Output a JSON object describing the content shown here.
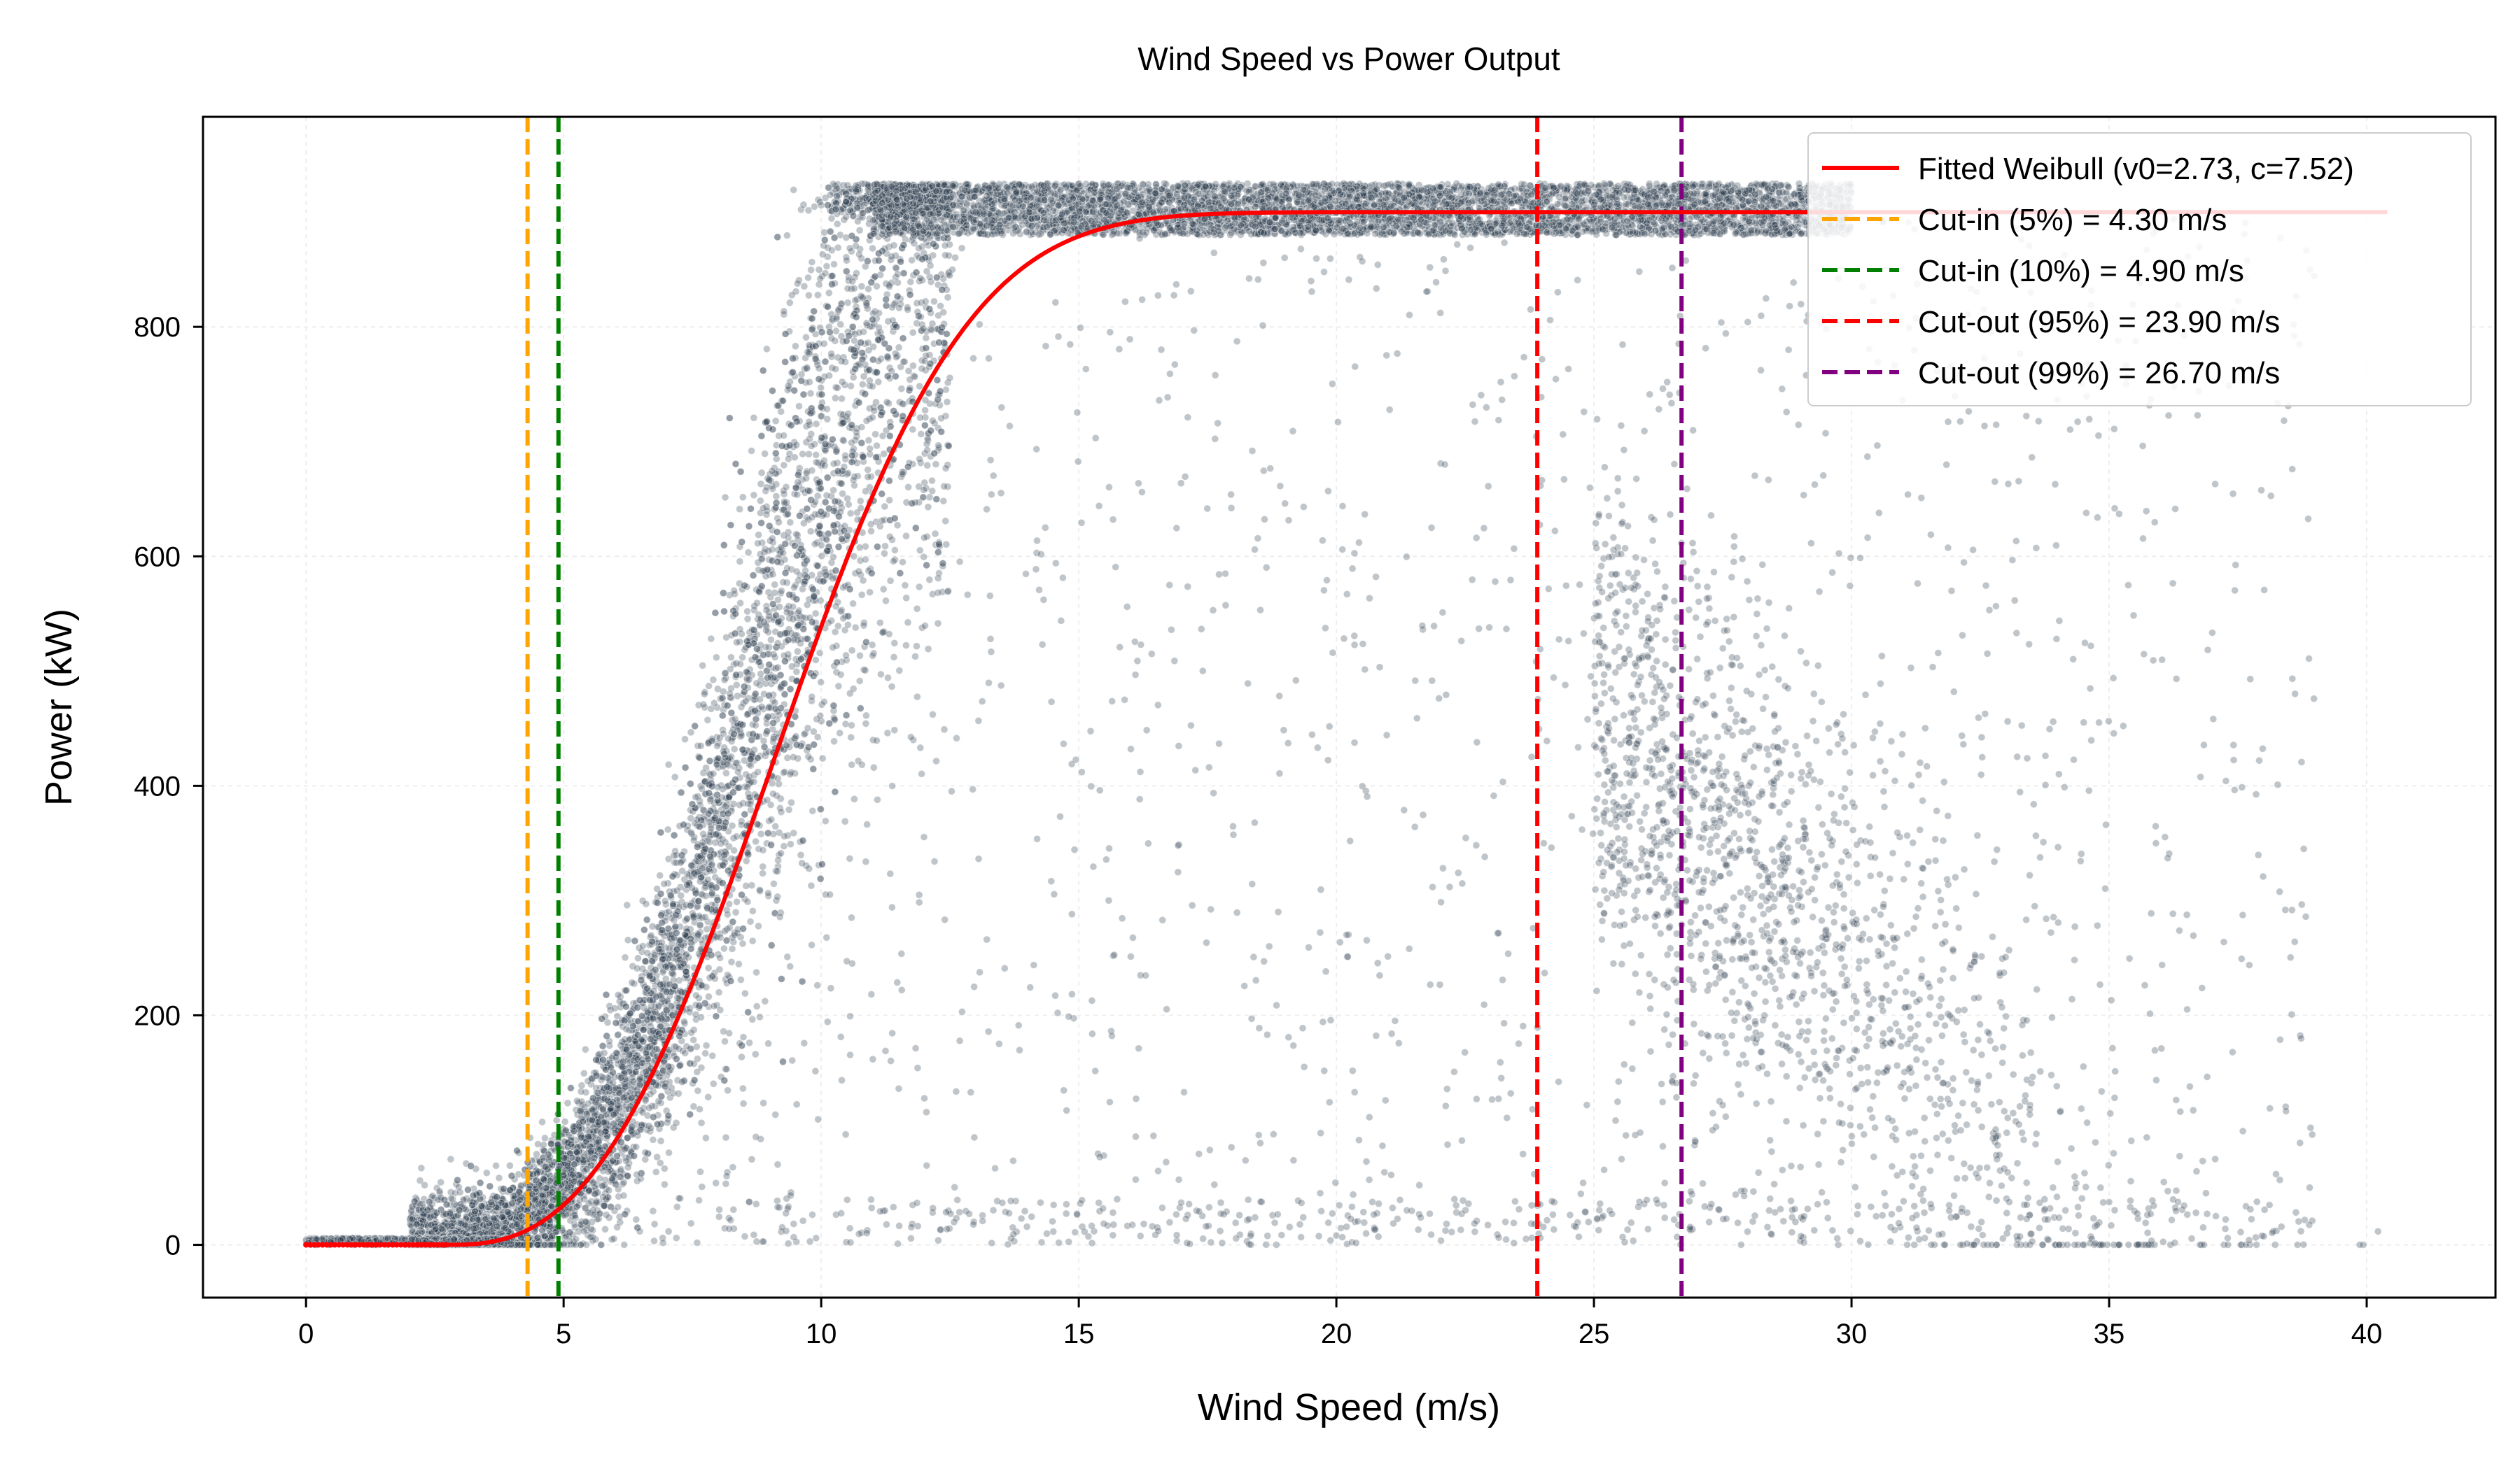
{
  "chart_data": {
    "type": "scatter",
    "title": "Wind Speed vs Power Output",
    "xlabel": "Wind Speed (m/s)",
    "ylabel": "Power (kW)",
    "xlim": [
      -2,
      42.5
    ],
    "ylim": [
      -46,
      983
    ],
    "xticks": [
      0,
      5,
      10,
      15,
      20,
      25,
      30,
      35,
      40
    ],
    "yticks": [
      0,
      200,
      400,
      600,
      800
    ],
    "grid": true,
    "legend_position": "top-right",
    "colors": {
      "scatter": "#2f3e50",
      "fit": "#ff0000",
      "cutin5": "#ffa500",
      "cutin10": "#008000",
      "cutout95": "#ff0000",
      "cutout99": "#800080"
    },
    "series": [
      {
        "name": "",
        "kind": "scatter-envelope",
        "description_points": {
          "x": [
            0,
            2,
            3,
            4,
            5,
            6,
            7,
            8,
            9,
            10,
            11,
            11.5,
            12,
            14,
            16,
            18,
            20,
            22,
            24,
            26,
            28,
            30,
            32,
            34,
            36,
            38,
            40
          ],
          "y_median": [
            0,
            0,
            5,
            15,
            50,
            120,
            220,
            360,
            520,
            680,
            820,
            890,
            900,
            900,
            900,
            900,
            900,
            900,
            900,
            895,
            870,
            300,
            220,
            150,
            80,
            40,
            20
          ]
        }
      },
      {
        "name": "Fitted Weibull (v0=2.73, c=7.52)",
        "kind": "line",
        "model": {
          "v0": 2.73,
          "c": 7.52,
          "k": 2.7,
          "pmax": 900,
          "x_start": 0,
          "x_end": 40.4
        }
      }
    ],
    "vlines": [
      {
        "name": "Cut-in (5%) = 4.30 m/s",
        "x": 4.3
      },
      {
        "name": "Cut-in (10%) = 4.90 m/s",
        "x": 4.9
      },
      {
        "name": "Cut-out (95%) = 23.90 m/s",
        "x": 23.9
      },
      {
        "name": "Cut-out (99%) = 26.70 m/s",
        "x": 26.7
      }
    ],
    "legend": [
      "Fitted Weibull (v0=2.73, c=7.52)",
      "Cut-in (5%) = 4.30 m/s",
      "Cut-in (10%) = 4.90 m/s",
      "Cut-out (95%) = 23.90 m/s",
      "Cut-out (99%) = 26.70 m/s"
    ]
  }
}
